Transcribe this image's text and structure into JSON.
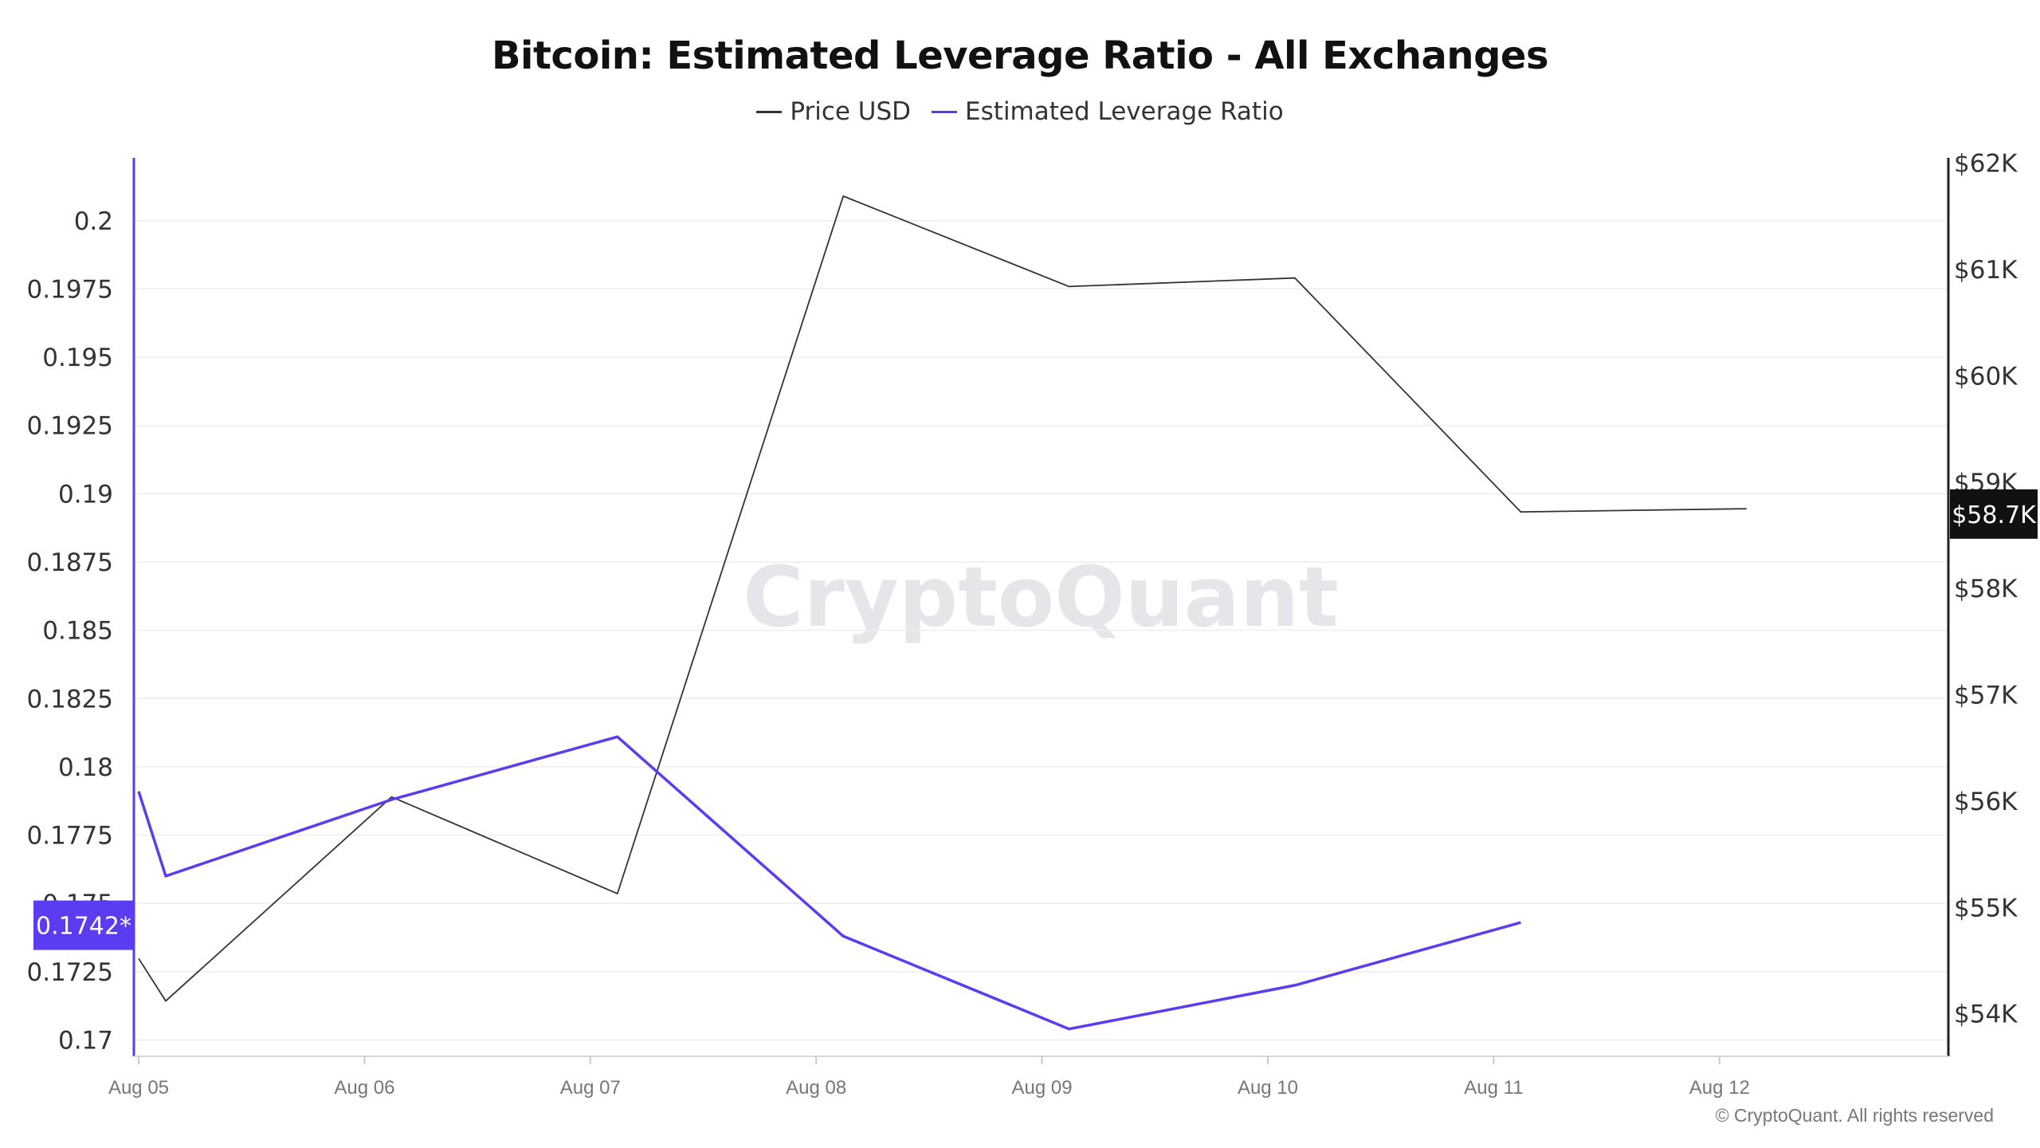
{
  "title": "Bitcoin: Estimated Leverage Ratio - All Exchanges",
  "watermark": "CryptoQuant",
  "footer": "© CryptoQuant. All rights reserved",
  "colors": {
    "price": "#333333",
    "ratio": "#5b3cf0",
    "grid": "#eeeeee",
    "axis": "#222222"
  },
  "chart_data": {
    "type": "line",
    "title": "Bitcoin: Estimated Leverage Ratio - All Exchanges",
    "legend_position": "top-center",
    "grid": true,
    "x_ticks": [
      "Aug 05",
      "Aug 06",
      "Aug 07",
      "Aug 08",
      "Aug 09",
      "Aug 10",
      "Aug 11",
      "Aug 12"
    ],
    "y_left": {
      "ticks": [
        "0.17",
        "0.1725",
        "0.175",
        "0.1775",
        "0.18",
        "0.1825",
        "0.185",
        "0.1875",
        "0.19",
        "0.1925",
        "0.195",
        "0.1975",
        "0.2"
      ],
      "range": [
        0.1694,
        0.2023
      ],
      "badge": "0.1742*"
    },
    "y_right": {
      "ticks": [
        "$54K",
        "$55K",
        "$56K",
        "$57K",
        "$58K",
        "$59K",
        "$60K",
        "$61K",
        "$62K"
      ],
      "range": [
        53600,
        62050
      ],
      "badge": "$58.7K"
    },
    "series": [
      {
        "name": "Price USD",
        "axis": "right",
        "points": [
          {
            "x": 5.0,
            "y": 54520
          },
          {
            "x": 5.12,
            "y": 54120
          },
          {
            "x": 6.12,
            "y": 56040
          },
          {
            "x": 7.12,
            "y": 55130
          },
          {
            "x": 8.12,
            "y": 61690
          },
          {
            "x": 9.12,
            "y": 60840
          },
          {
            "x": 10.12,
            "y": 60920
          },
          {
            "x": 11.12,
            "y": 58720
          },
          {
            "x": 12.12,
            "y": 58750
          }
        ]
      },
      {
        "name": "Estimated Leverage Ratio",
        "axis": "left",
        "points": [
          {
            "x": 5.0,
            "y": 0.1791
          },
          {
            "x": 5.12,
            "y": 0.176
          },
          {
            "x": 6.12,
            "y": 0.1788
          },
          {
            "x": 7.12,
            "y": 0.1811
          },
          {
            "x": 8.12,
            "y": 0.1738
          },
          {
            "x": 9.12,
            "y": 0.1704
          },
          {
            "x": 10.12,
            "y": 0.172
          },
          {
            "x": 11.12,
            "y": 0.1743
          }
        ]
      }
    ]
  }
}
